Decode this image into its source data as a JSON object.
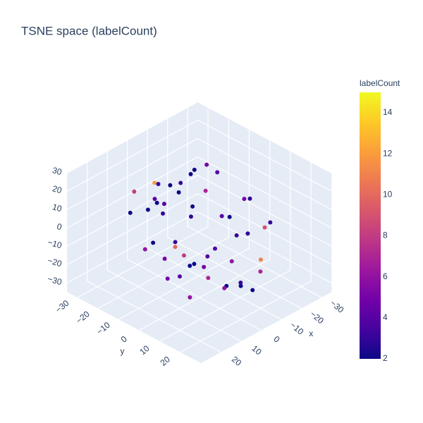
{
  "chart_data": {
    "type": "scatter3d",
    "title": "TSNE space (labelCount)",
    "x_label": "x",
    "y_label": "y",
    "xlim": [
      -35,
      30
    ],
    "ylim": [
      -35,
      30
    ],
    "zlim": [
      -35,
      30
    ],
    "xticks": [
      {
        "value": -30,
        "label": "−30"
      },
      {
        "value": -20,
        "label": "−20"
      },
      {
        "value": -10,
        "label": "−10"
      },
      0,
      10,
      20
    ],
    "yticks": [
      {
        "value": -30,
        "label": "−30"
      },
      {
        "value": -20,
        "label": "−20"
      },
      {
        "value": -10,
        "label": "−10"
      },
      0,
      10,
      20
    ],
    "zticks": [
      {
        "value": -30,
        "label": "−30"
      },
      {
        "value": -20,
        "label": "−20"
      },
      {
        "value": -10,
        "label": "−10"
      },
      0,
      10,
      20,
      30
    ],
    "colorbar_title": "labelCount",
    "clim": [
      2,
      15
    ],
    "cticks": [
      2,
      4,
      6,
      8,
      10,
      12,
      14
    ],
    "colorscale": [
      "#0d0887",
      "#46039f",
      "#7201a8",
      "#9c179e",
      "#bd3786",
      "#d8576b",
      "#ed7953",
      "#fb9f3a",
      "#fdca26",
      "#f0f921"
    ],
    "x": [
      -20,
      -15,
      -10,
      -5,
      0,
      5,
      10,
      15,
      20,
      -18,
      -12,
      -6,
      0,
      6,
      12,
      18,
      -22,
      -14,
      -8,
      -2,
      4,
      10,
      16,
      22,
      -16,
      -10,
      -4,
      2,
      8,
      14,
      -20,
      -12,
      -4,
      4,
      12,
      20,
      -8,
      0,
      8,
      -15,
      -5,
      5,
      15,
      -25,
      25,
      -10,
      10,
      0,
      -18,
      18
    ],
    "y": [
      5,
      -18,
      12,
      -22,
      3,
      18,
      -8,
      10,
      -3,
      -10,
      20,
      -15,
      -25,
      8,
      -20,
      15,
      2,
      -5,
      22,
      -12,
      16,
      -2,
      -18,
      6,
      14,
      -24,
      0,
      20,
      -14,
      9,
      -16,
      4,
      -8,
      24,
      -10,
      12,
      18,
      -20,
      -4,
      0,
      6,
      -12,
      -6,
      10,
      -2,
      -14,
      14,
      20,
      -20,
      8
    ],
    "z": [
      10,
      -5,
      20,
      0,
      25,
      -15,
      12,
      -20,
      5,
      -25,
      8,
      15,
      -2,
      -10,
      18,
      3,
      -12,
      22,
      -6,
      14,
      -18,
      0,
      10,
      -8,
      -22,
      6,
      -15,
      12,
      24,
      -4,
      16,
      -20,
      2,
      -12,
      20,
      7,
      -25,
      15,
      -5,
      0,
      10,
      -18,
      22,
      -3,
      5,
      18,
      -10,
      -15,
      12,
      -8
    ],
    "values": [
      3,
      2,
      5,
      4,
      7,
      2,
      3,
      6,
      2,
      4,
      9,
      3,
      2,
      5,
      8,
      2,
      3,
      4,
      11,
      2,
      6,
      3,
      2,
      5,
      7,
      2,
      4,
      3,
      12,
      2,
      5,
      6,
      3,
      2,
      4,
      8,
      2,
      3,
      10,
      2,
      4,
      5,
      2,
      3,
      6,
      2,
      7,
      3,
      2,
      4
    ]
  }
}
